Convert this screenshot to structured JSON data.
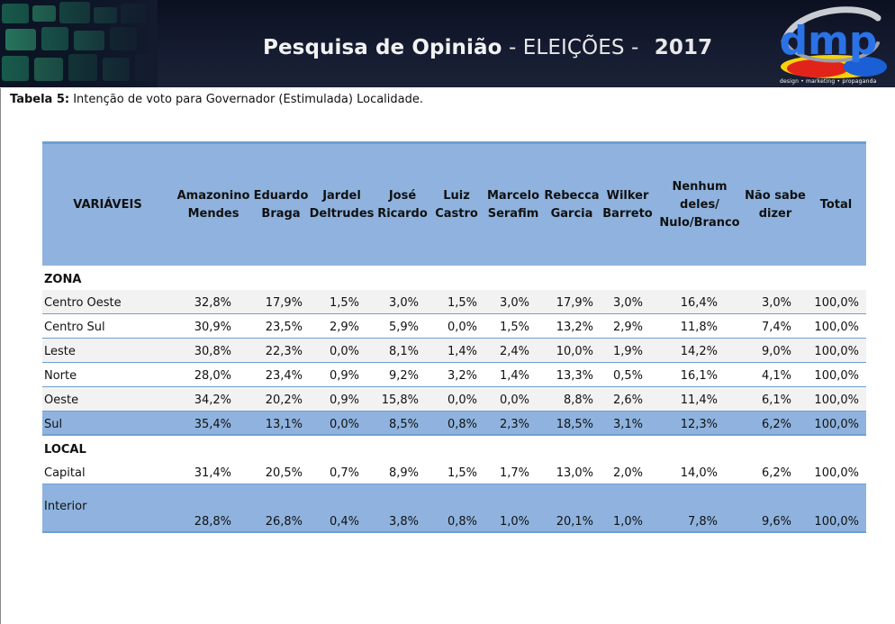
{
  "header": {
    "title_main": "Pesquisa de Opinião",
    "title_sep": "-",
    "title_sub": "ELEIÇÕES -",
    "year": "2017",
    "logo_text": "dmp",
    "logo_tagline": "design • marketing • propaganda",
    "colors": {
      "banner": "#121829",
      "logo_red": "#e2231a",
      "logo_yellow": "#f5d20a",
      "logo_blue": "#1a5fd6"
    }
  },
  "caption": {
    "prefix": "Tabela 5:",
    "text": " Intenção de voto para Governador (Estimulada) Localidade."
  },
  "table": {
    "columns": [
      {
        "lines": [
          "VARIÁVEIS"
        ]
      },
      {
        "lines": [
          "Amazonino",
          "Mendes"
        ]
      },
      {
        "lines": [
          "Eduardo",
          "Braga"
        ]
      },
      {
        "lines": [
          "Jardel",
          "Deltrudes"
        ]
      },
      {
        "lines": [
          "José",
          "Ricardo"
        ]
      },
      {
        "lines": [
          "Luiz",
          "Castro"
        ]
      },
      {
        "lines": [
          "Marcelo",
          "Serafim"
        ]
      },
      {
        "lines": [
          "Rebecca",
          "Garcia"
        ]
      },
      {
        "lines": [
          "Wilker",
          "Barreto"
        ]
      },
      {
        "lines": [
          "Nenhum",
          "deles/",
          "Nulo/Branco"
        ]
      },
      {
        "lines": [
          "Não sabe",
          "dizer"
        ]
      },
      {
        "lines": [
          "Total"
        ]
      }
    ],
    "sections": [
      {
        "title": "ZONA",
        "rows": [
          {
            "label": "Centro Oeste",
            "values": [
              "32,8%",
              "17,9%",
              "1,5%",
              "3,0%",
              "1,5%",
              "3,0%",
              "17,9%",
              "3,0%",
              "16,4%",
              "3,0%",
              "100,0%"
            ]
          },
          {
            "label": "Centro Sul",
            "values": [
              "30,9%",
              "23,5%",
              "2,9%",
              "5,9%",
              "0,0%",
              "1,5%",
              "13,2%",
              "2,9%",
              "11,8%",
              "7,4%",
              "100,0%"
            ]
          },
          {
            "label": "Leste",
            "values": [
              "30,8%",
              "22,3%",
              "0,0%",
              "8,1%",
              "1,4%",
              "2,4%",
              "10,0%",
              "1,9%",
              "14,2%",
              "9,0%",
              "100,0%"
            ]
          },
          {
            "label": "Norte",
            "values": [
              "28,0%",
              "23,4%",
              "0,9%",
              "9,2%",
              "3,2%",
              "1,4%",
              "13,3%",
              "0,5%",
              "16,1%",
              "4,1%",
              "100,0%"
            ]
          },
          {
            "label": "Oeste",
            "values": [
              "34,2%",
              "20,2%",
              "0,9%",
              "15,8%",
              "0,0%",
              "0,0%",
              "8,8%",
              "2,6%",
              "11,4%",
              "6,1%",
              "100,0%"
            ]
          },
          {
            "label": "Sul",
            "values": [
              "35,4%",
              "13,1%",
              "0,0%",
              "8,5%",
              "0,8%",
              "2,3%",
              "18,5%",
              "3,1%",
              "12,3%",
              "6,2%",
              "100,0%"
            ]
          }
        ]
      },
      {
        "title": "LOCAL",
        "rows": [
          {
            "label": "Capital",
            "values": [
              "31,4%",
              "20,5%",
              "0,7%",
              "8,9%",
              "1,5%",
              "1,7%",
              "13,0%",
              "2,0%",
              "14,0%",
              "6,2%",
              "100,0%"
            ]
          },
          {
            "label": "Interior",
            "values": [
              "28,8%",
              "26,8%",
              "0,4%",
              "3,8%",
              "0,8%",
              "1,0%",
              "20,1%",
              "1,0%",
              "7,8%",
              "9,6%",
              "100,0%"
            ]
          }
        ]
      }
    ]
  }
}
